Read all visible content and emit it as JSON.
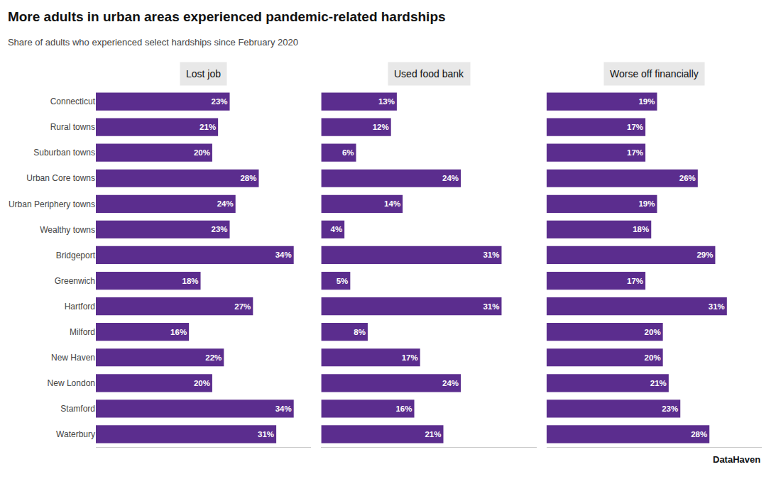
{
  "chart_data": {
    "type": "bar",
    "orientation": "horizontal",
    "title": "More adults in urban areas experienced pandemic-related hardships",
    "subtitle": "Share of adults who experienced select hardships since February 2020",
    "annotations": [
      "DataHaven"
    ],
    "categories": [
      "Connecticut",
      "Rural towns",
      "Suburban towns",
      "Urban Core towns",
      "Urban Periphery towns",
      "Wealthy towns",
      "Bridgeport",
      "Greenwich",
      "Hartford",
      "Milford",
      "New Haven",
      "New London",
      "Stamford",
      "Waterbury"
    ],
    "series": [
      {
        "name": "Lost job",
        "color": "#5b2d8e",
        "values": [
          23,
          21,
          20,
          28,
          24,
          23,
          34,
          18,
          27,
          16,
          22,
          20,
          34,
          31
        ],
        "value_labels": [
          "23%",
          "21%",
          "20%",
          "28%",
          "24%",
          "23%",
          "34%",
          "18%",
          "27%",
          "16%",
          "22%",
          "20%",
          "34%",
          "31%"
        ]
      },
      {
        "name": "Used food bank",
        "color": "#5b2d8e",
        "values": [
          13,
          12,
          6,
          24,
          14,
          4,
          31,
          5,
          31,
          8,
          17,
          24,
          16,
          21
        ],
        "value_labels": [
          "13%",
          "12%",
          "6%",
          "24%",
          "14%",
          "4%",
          "31%",
          "5%",
          "31%",
          "8%",
          "17%",
          "24%",
          "16%",
          "21%"
        ]
      },
      {
        "name": "Worse off financially",
        "color": "#5b2d8e",
        "values": [
          19,
          17,
          17,
          26,
          19,
          18,
          29,
          17,
          31,
          20,
          20,
          21,
          23,
          28
        ],
        "value_labels": [
          "19%",
          "17%",
          "17%",
          "26%",
          "19%",
          "18%",
          "29%",
          "17%",
          "31%",
          "20%",
          "20%",
          "21%",
          "23%",
          "28%"
        ]
      }
    ],
    "xlim": [
      0,
      37
    ],
    "xticks": [],
    "data_labels": true,
    "tick_labels": "y",
    "grid": false
  }
}
